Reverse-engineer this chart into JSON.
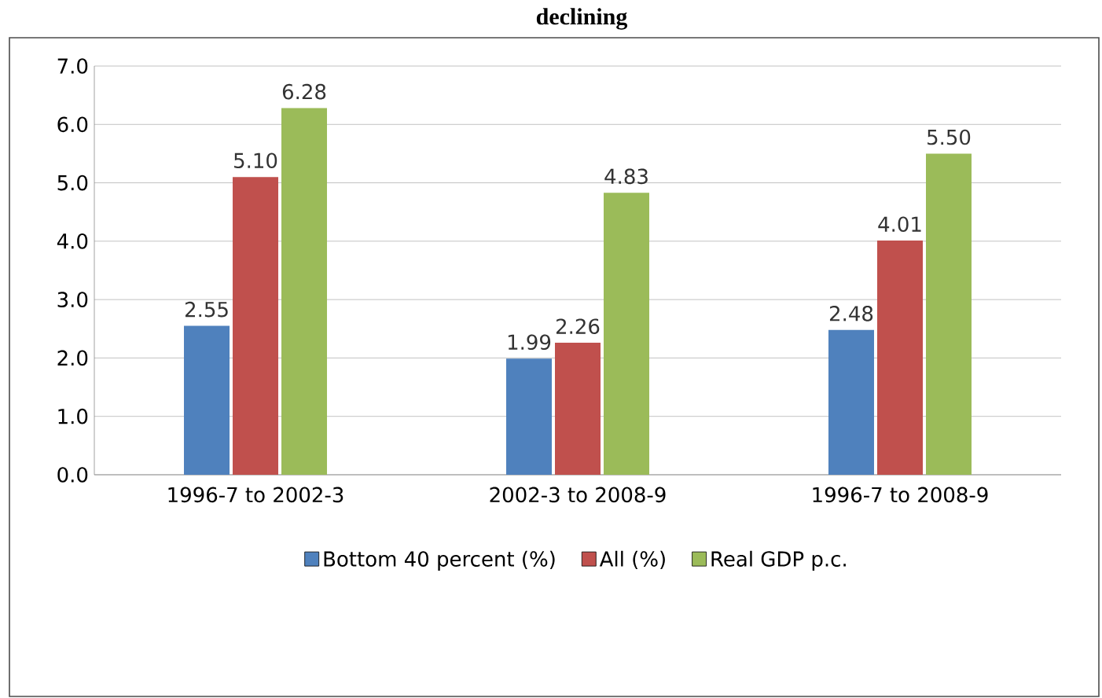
{
  "chart_data": {
    "type": "bar",
    "title": "declining",
    "categories": [
      "1996-7 to 2002-3",
      "2002-3 to 2008-9",
      "1996-7 to 2008-9"
    ],
    "series": [
      {
        "name": "Bottom 40 percent (%)",
        "color": "#4f81bd",
        "values": [
          2.55,
          1.99,
          2.48
        ],
        "value_labels": [
          "2.55",
          "1.99",
          "2.48"
        ]
      },
      {
        "name": "All (%)",
        "color": "#c0504d",
        "values": [
          5.1,
          2.26,
          4.01
        ],
        "value_labels": [
          "5.10",
          "2.26",
          "4.01"
        ]
      },
      {
        "name": "Real GDP p.c.",
        "color": "#9bbb59",
        "values": [
          6.28,
          4.83,
          5.5
        ],
        "value_labels": [
          "6.28",
          "4.83",
          "5.50"
        ]
      }
    ],
    "ylim": [
      0,
      7
    ],
    "yticks": [
      {
        "value": 0,
        "label": "0.0"
      },
      {
        "value": 1,
        "label": "1.0"
      },
      {
        "value": 2,
        "label": "2.0"
      },
      {
        "value": 3,
        "label": "3.0"
      },
      {
        "value": 4,
        "label": "4.0"
      },
      {
        "value": 5,
        "label": "5.0"
      },
      {
        "value": 6,
        "label": "6.0"
      },
      {
        "value": 7,
        "label": "7.0"
      }
    ],
    "grid": "y",
    "legend": "bottom"
  }
}
